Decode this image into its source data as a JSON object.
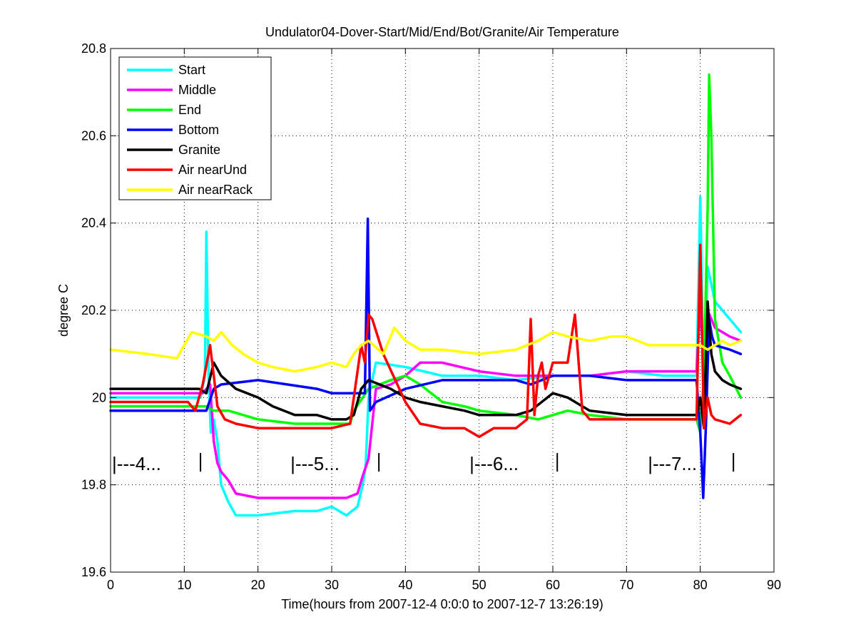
{
  "chart_data": {
    "type": "line",
    "title": "Undulator04-Dover-Start/Mid/End/Bot/Granite/Air Temperature",
    "xlabel": "Time(hours from 2007-12-4 0:0:0 to 2007-12-7 13:26:19)",
    "ylabel": "degree C",
    "xlim": [
      0,
      90
    ],
    "ylim": [
      19.6,
      20.8
    ],
    "xticks": [
      0,
      10,
      20,
      30,
      40,
      50,
      60,
      70,
      80,
      90
    ],
    "yticks": [
      19.6,
      19.8,
      20,
      20.2,
      20.4,
      20.6,
      20.8
    ],
    "xtick_labels": [
      "0",
      "10",
      "20",
      "30",
      "40",
      "50",
      "60",
      "70",
      "80",
      "90"
    ],
    "ytick_labels": [
      "19.6",
      "19.8",
      "20",
      "20.2",
      "20.4",
      "20.6",
      "20.8"
    ],
    "grid": true,
    "legend_position": "top-left",
    "day_markers": [
      {
        "label": "|---4...",
        "x": 0,
        "end_x": 12.2
      },
      {
        "label": "|---5...",
        "x": 24.2,
        "end_x": 36.4
      },
      {
        "label": "|---6...",
        "x": 48.5,
        "end_x": 60.6
      },
      {
        "label": "|---7...",
        "x": 72.7,
        "end_x": 84.5
      }
    ],
    "series": [
      {
        "name": "Start",
        "color": "#00ffff",
        "x": [
          0,
          12.2,
          12.8,
          13.0,
          13.3,
          13.6,
          14.0,
          14.5,
          15.0,
          16.0,
          17.0,
          20,
          25,
          28,
          30,
          32,
          33.5,
          34.2,
          34.6,
          35.0,
          36,
          40,
          45,
          50,
          55,
          60,
          65,
          70,
          75,
          79.5,
          80.0,
          80.5,
          81,
          82,
          84,
          85.5
        ],
        "y": [
          20.0,
          20.0,
          20.05,
          20.38,
          20.05,
          19.92,
          19.95,
          19.9,
          19.8,
          19.76,
          19.73,
          19.73,
          19.74,
          19.74,
          19.75,
          19.73,
          19.75,
          19.8,
          19.84,
          20.0,
          20.08,
          20.07,
          20.05,
          20.05,
          20.04,
          20.05,
          20.05,
          20.06,
          20.05,
          20.05,
          20.46,
          20.0,
          20.3,
          20.22,
          20.18,
          20.15
        ]
      },
      {
        "name": "Middle",
        "color": "#ff00ff",
        "x": [
          0,
          12.5,
          13.5,
          14.0,
          14.5,
          15.0,
          16.0,
          17.0,
          20,
          25,
          30,
          32,
          33.5,
          34.2,
          35.0,
          36,
          38,
          40,
          42,
          45,
          50,
          55,
          60,
          65,
          70,
          75,
          79.5,
          80.0,
          80.5,
          81,
          82,
          84,
          85.5
        ],
        "y": [
          20.01,
          20.01,
          20.03,
          19.9,
          19.85,
          19.83,
          19.81,
          19.78,
          19.77,
          19.77,
          19.77,
          19.77,
          19.78,
          19.82,
          19.86,
          20.02,
          20.03,
          20.05,
          20.08,
          20.08,
          20.06,
          20.05,
          20.05,
          20.05,
          20.06,
          20.06,
          20.06,
          20.22,
          20.05,
          20.2,
          20.16,
          20.14,
          20.13
        ]
      },
      {
        "name": "End",
        "color": "#00ff00",
        "x": [
          0,
          12.0,
          13.0,
          14.0,
          16,
          18,
          20,
          25,
          30,
          32.5,
          33.0,
          35,
          38,
          40,
          42,
          45,
          48,
          50,
          55,
          58,
          60,
          62,
          65,
          70,
          75,
          79.5,
          80.0,
          80.5,
          81.0,
          81.2,
          81.5,
          82.0,
          83,
          84,
          85.5
        ],
        "y": [
          19.98,
          19.98,
          19.98,
          19.97,
          19.97,
          19.96,
          19.95,
          19.94,
          19.94,
          19.94,
          19.97,
          20.02,
          20.04,
          20.05,
          20.03,
          19.99,
          19.98,
          19.97,
          19.96,
          19.95,
          19.96,
          19.97,
          19.96,
          19.95,
          19.95,
          19.95,
          19.92,
          20.05,
          20.43,
          20.74,
          20.6,
          20.18,
          20.08,
          20.05,
          20.0
        ]
      },
      {
        "name": "Bottom",
        "color": "#0000ff",
        "x": [
          0,
          12.0,
          13.0,
          14.0,
          15,
          20,
          24,
          28,
          30,
          33,
          34.5,
          34.9,
          35.2,
          36,
          40,
          45,
          50,
          55,
          57,
          60,
          65,
          70,
          75,
          79.5,
          80.0,
          80.4,
          80.8,
          81.2,
          81.6,
          82,
          84,
          85.5
        ],
        "y": [
          19.97,
          19.97,
          19.97,
          20.02,
          20.03,
          20.04,
          20.03,
          20.02,
          20.01,
          20.01,
          20.01,
          20.41,
          19.97,
          19.99,
          20.02,
          20.04,
          20.04,
          20.04,
          20.03,
          20.05,
          20.05,
          20.04,
          20.04,
          20.04,
          19.92,
          19.77,
          19.95,
          20.18,
          20.14,
          20.12,
          20.11,
          20.1
        ]
      },
      {
        "name": "Granite",
        "color": "#000000",
        "x": [
          0,
          12.0,
          13.0,
          14.0,
          15,
          17,
          20,
          22,
          25,
          28,
          30,
          32,
          33,
          34,
          35,
          38,
          40,
          42,
          45,
          48,
          50,
          55,
          57,
          60,
          62,
          65,
          70,
          75,
          79.5,
          80.0,
          80.5,
          81.0,
          81.5,
          82,
          83,
          84,
          85.5
        ],
        "y": [
          20.02,
          20.02,
          20.01,
          20.08,
          20.05,
          20.02,
          20.0,
          19.98,
          19.96,
          19.96,
          19.95,
          19.95,
          19.96,
          20.02,
          20.04,
          20.02,
          20.0,
          19.99,
          19.98,
          19.97,
          19.96,
          19.96,
          19.97,
          20.01,
          20.0,
          19.97,
          19.96,
          19.96,
          19.96,
          20.0,
          19.93,
          20.22,
          20.1,
          20.06,
          20.04,
          20.03,
          20.02
        ]
      },
      {
        "name": "Air nearUnd",
        "color": "#ff0000",
        "x": [
          0,
          10.5,
          11.5,
          12.5,
          13.5,
          14.0,
          14.5,
          15.5,
          17,
          20,
          25,
          30,
          32.5,
          33.5,
          34.0,
          34.5,
          35.0,
          35.5,
          37,
          40,
          42,
          45,
          48,
          50,
          52,
          55,
          56.5,
          57.0,
          57.5,
          58.0,
          58.5,
          59,
          60,
          62,
          63.0,
          63.5,
          64,
          65,
          70,
          75,
          79.5,
          80.0,
          80.5,
          81.0,
          81.5,
          82,
          84,
          85.5
        ],
        "y": [
          19.99,
          19.99,
          19.97,
          20.03,
          20.12,
          20.05,
          19.98,
          19.95,
          19.94,
          19.93,
          19.93,
          19.93,
          19.94,
          20.06,
          20.12,
          20.08,
          20.19,
          20.18,
          20.1,
          19.99,
          19.94,
          19.93,
          19.93,
          19.91,
          19.93,
          19.93,
          19.95,
          20.18,
          19.96,
          20.05,
          20.08,
          20.02,
          20.08,
          20.08,
          20.19,
          20.08,
          19.97,
          19.95,
          19.95,
          19.95,
          19.95,
          20.35,
          19.93,
          20.0,
          19.96,
          19.95,
          19.94,
          19.96
        ]
      },
      {
        "name": "Air nearRack",
        "color": "#ffff00",
        "x": [
          0,
          5,
          9,
          10,
          11,
          13,
          14,
          15,
          16.5,
          18,
          20,
          22,
          25,
          28,
          30,
          32,
          33,
          34,
          35,
          37,
          38.5,
          40,
          42,
          45,
          50,
          55,
          58,
          60,
          62,
          65,
          68,
          70,
          73,
          75,
          78,
          80,
          81,
          82,
          83,
          84,
          85.5
        ],
        "y": [
          20.11,
          20.1,
          20.09,
          20.12,
          20.15,
          20.14,
          20.13,
          20.15,
          20.12,
          20.1,
          20.08,
          20.07,
          20.06,
          20.07,
          20.08,
          20.07,
          20.1,
          20.12,
          20.13,
          20.1,
          20.16,
          20.13,
          20.11,
          20.11,
          20.1,
          20.11,
          20.13,
          20.15,
          20.14,
          20.13,
          20.14,
          20.14,
          20.12,
          20.12,
          20.12,
          20.12,
          20.11,
          20.12,
          20.13,
          20.12,
          20.13
        ]
      }
    ]
  }
}
